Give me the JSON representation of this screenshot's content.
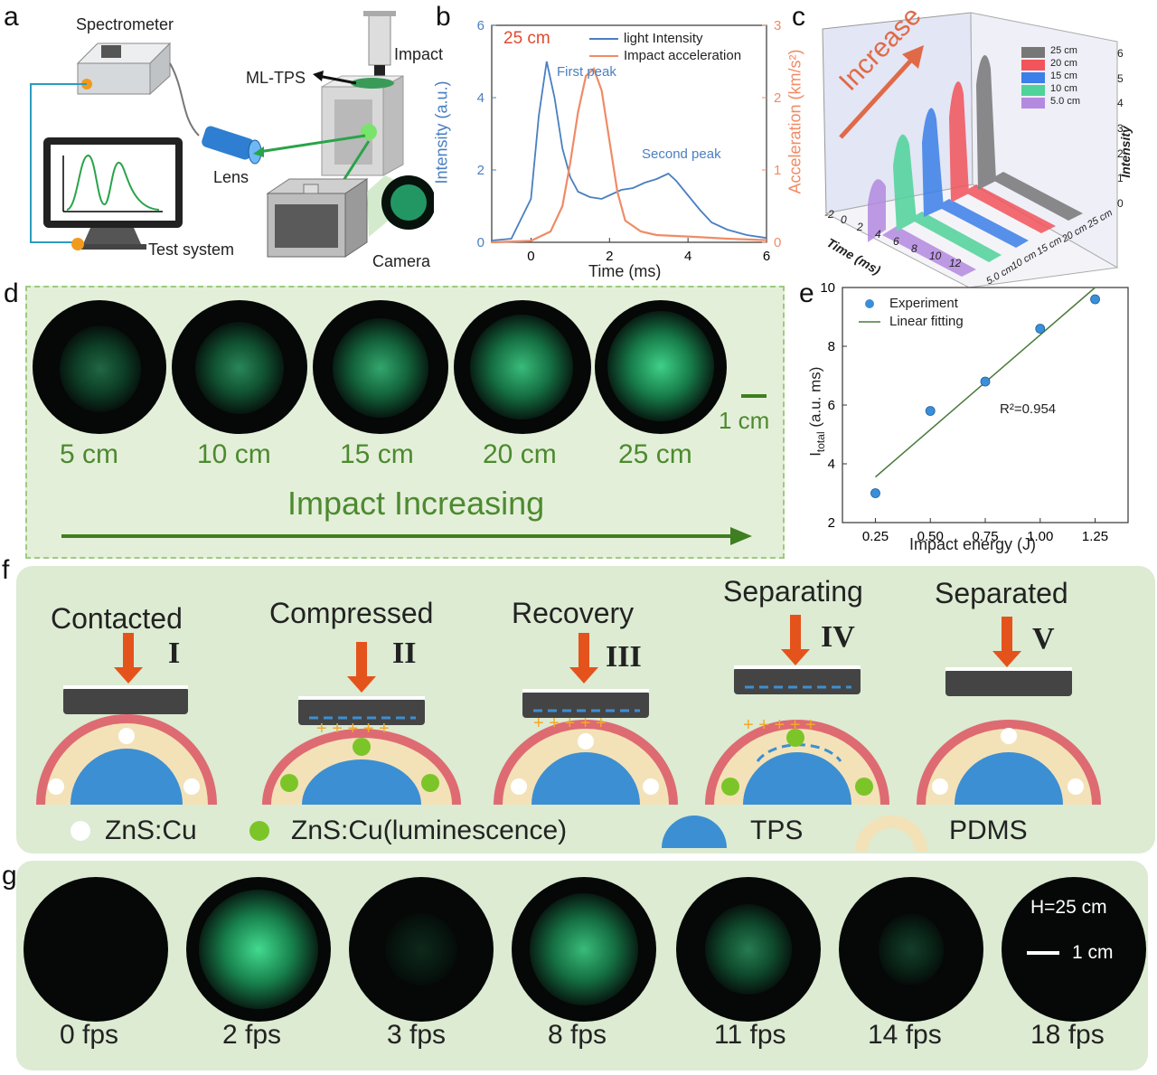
{
  "panel_labels": [
    "a",
    "b",
    "c",
    "d",
    "e",
    "f",
    "g"
  ],
  "panel_a": {
    "spectrometer": "Spectrometer",
    "impact": "Impact",
    "ml_tps": "ML-TPS",
    "lens": "Lens",
    "test_system": "Test system",
    "camera": "Camera"
  },
  "panel_b": {
    "height_label": "25 cm",
    "legend": [
      "light Intensity",
      "Impact acceleration"
    ],
    "annotations": [
      "First peak",
      "Second peak"
    ],
    "xlabel": "Time (ms)",
    "ylabel_left": "Intensity (a.u.)",
    "ylabel_right": "Acceleration (km/s²)",
    "x_ticks": [
      "0",
      "2",
      "4",
      "6"
    ],
    "y_left_ticks": [
      "0",
      "2",
      "4",
      "6"
    ],
    "y_right_ticks": [
      "0",
      "1",
      "2",
      "3"
    ]
  },
  "panel_c": {
    "arrow_label": "Increase",
    "legend": [
      "25 cm",
      "20 cm",
      "15 cm",
      "10 cm",
      "5.0 cm"
    ],
    "z_label": "Intensity",
    "z_ticks": [
      "0",
      "1",
      "2",
      "3",
      "4",
      "5",
      "6"
    ],
    "x_label": "Time (ms)",
    "x_ticks": [
      "-2",
      "0",
      "2",
      "4",
      "6",
      "8",
      "10",
      "12"
    ],
    "y_ticks": [
      "5.0 cm",
      "10 cm",
      "15 cm",
      "20 cm",
      "25 cm"
    ]
  },
  "panel_d": {
    "heights": [
      "5 cm",
      "10 cm",
      "15 cm",
      "20 cm",
      "25 cm"
    ],
    "scale": "1 cm",
    "arrow_label": "Impact Increasing"
  },
  "panel_e": {
    "legend": [
      "Experiment",
      "Linear fitting"
    ],
    "r2": "R²=0.954",
    "xlabel": "Impact energy (J)",
    "ylabel": "I",
    "ylabel_sub": "total",
    "ylabel_unit": " (a.u. ms)"
  },
  "panel_f": {
    "stages": [
      {
        "title": "Contacted",
        "numeral": "I"
      },
      {
        "title": "Compressed",
        "numeral": "II"
      },
      {
        "title": "Recovery",
        "numeral": "III"
      },
      {
        "title": "Separating",
        "numeral": "IV"
      },
      {
        "title": "Separated",
        "numeral": "V"
      }
    ],
    "legend": [
      "ZnS:Cu",
      "ZnS:Cu(luminescence)",
      "TPS",
      "PDMS"
    ]
  },
  "panel_g": {
    "frames": [
      "0 fps",
      "2 fps",
      "3 fps",
      "8 fps",
      "11 fps",
      "14 fps",
      "18 fps"
    ],
    "height": "H=25 cm",
    "scale": "1 cm"
  },
  "chart_data": [
    {
      "type": "line",
      "title": "",
      "xlabel": "Time (ms)",
      "ylabel": "Intensity (a.u.)",
      "xlim": [
        -1,
        6
      ],
      "ylim": [
        0,
        6
      ],
      "y2lim": [
        0,
        3
      ],
      "series": [
        {
          "name": "light Intensity",
          "axis": "left",
          "color": "#4a7fc1",
          "x": [
            -1,
            -0.5,
            0,
            0.2,
            0.4,
            0.6,
            0.8,
            1.0,
            1.2,
            1.5,
            1.8,
            2.0,
            2.3,
            2.6,
            2.9,
            3.2,
            3.5,
            3.7,
            4.0,
            4.3,
            4.6,
            5.0,
            5.5,
            6.0
          ],
          "y": [
            0.05,
            0.1,
            1.2,
            3.5,
            5.0,
            4.0,
            2.6,
            1.8,
            1.4,
            1.25,
            1.2,
            1.3,
            1.45,
            1.5,
            1.65,
            1.75,
            1.9,
            1.7,
            1.3,
            0.9,
            0.55,
            0.35,
            0.2,
            0.12
          ]
        },
        {
          "name": "Impact acceleration",
          "axis": "right",
          "color": "#f08b66",
          "x": [
            -1,
            0,
            0.5,
            0.8,
            1.0,
            1.2,
            1.4,
            1.6,
            1.8,
            2.0,
            2.2,
            2.4,
            2.8,
            3.2,
            4.0,
            5.0,
            6.0
          ],
          "y": [
            0,
            0.02,
            0.15,
            0.5,
            1.1,
            1.8,
            2.3,
            2.4,
            2.1,
            1.4,
            0.7,
            0.3,
            0.15,
            0.1,
            0.08,
            0.05,
            0.03
          ]
        }
      ]
    },
    {
      "type": "scatter",
      "xlabel": "Impact energy (J)",
      "ylabel": "I_total (a.u. ms)",
      "xlim": [
        0.1,
        1.4
      ],
      "ylim": [
        2,
        10
      ],
      "x_ticks": [
        "0.25",
        "0.50",
        "0.75",
        "1.00",
        "1.25"
      ],
      "y_ticks": [
        "2",
        "4",
        "6",
        "8",
        "10"
      ],
      "series": [
        {
          "name": "Experiment",
          "x": [
            0.25,
            0.5,
            0.75,
            1.0,
            1.25
          ],
          "y": [
            3.0,
            5.8,
            6.8,
            8.6,
            9.6
          ]
        },
        {
          "name": "Linear fitting",
          "x": [
            0.25,
            1.25
          ],
          "y": [
            3.55,
            10.0
          ]
        }
      ],
      "annotations": [
        "R²=0.954"
      ]
    }
  ]
}
